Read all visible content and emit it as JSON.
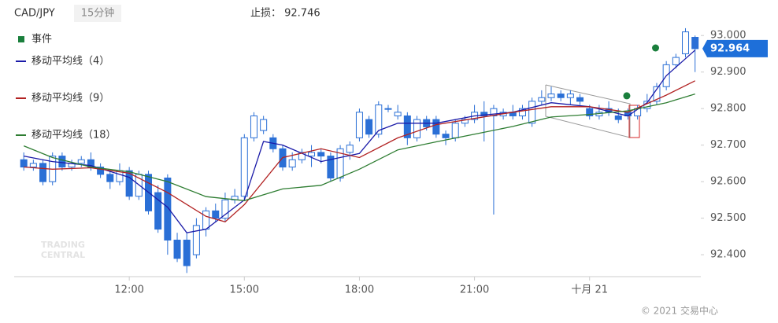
{
  "chart_data": {
    "type": "candlestick",
    "symbol": "CAD/JPY",
    "interval": "15分钟",
    "stop_loss": "止损：  92.746",
    "watermark": [
      "TRADING",
      "CENTRAL"
    ],
    "copyright": "© 2021 交易中心",
    "up_color": "#ffffff",
    "down_color": "#2a6fd6",
    "candle_edge": "#2a6fd6",
    "x": [
      9.25,
      9.5,
      9.75,
      10,
      10.25,
      10.5,
      10.75,
      11,
      11.25,
      11.5,
      11.75,
      12,
      12.25,
      12.5,
      12.75,
      13,
      13.25,
      13.5,
      13.75,
      14,
      14.25,
      14.5,
      14.75,
      15,
      15.25,
      15.5,
      15.75,
      16,
      16.25,
      16.5,
      16.75,
      17,
      17.25,
      17.5,
      17.75,
      18,
      18.25,
      18.5,
      18.75,
      19,
      19.25,
      19.5,
      19.75,
      20,
      20.25,
      20.5,
      20.75,
      21,
      21.25,
      21.5,
      21.75,
      22,
      22.25,
      22.5,
      22.75,
      23,
      23.25,
      23.5,
      23.75,
      24,
      24.25,
      24.5,
      24.75,
      25,
      25.25,
      25.5,
      25.75,
      26,
      26.25,
      26.5,
      26.75
    ],
    "open": [
      92.66,
      92.64,
      92.65,
      92.6,
      92.67,
      92.64,
      92.65,
      92.66,
      92.64,
      92.62,
      92.6,
      92.63,
      92.56,
      92.62,
      92.57,
      92.61,
      92.44,
      92.44,
      92.4,
      92.47,
      92.52,
      92.5,
      92.55,
      92.56,
      92.72,
      92.74,
      92.72,
      92.69,
      92.64,
      92.66,
      92.67,
      92.68,
      92.67,
      92.61,
      92.68,
      92.72,
      92.77,
      92.73,
      92.8,
      92.78,
      92.78,
      92.72,
      92.77,
      92.77,
      92.73,
      92.72,
      92.76,
      92.77,
      92.79,
      92.78,
      92.78,
      92.79,
      92.78,
      92.76,
      92.82,
      92.83,
      92.84,
      92.83,
      92.83,
      92.8,
      92.78,
      92.8,
      92.78,
      92.79,
      92.78,
      92.8,
      92.82,
      92.86,
      92.92,
      92.95,
      92.995
    ],
    "high": [
      92.68,
      92.66,
      92.66,
      92.68,
      92.68,
      92.66,
      92.67,
      92.68,
      92.65,
      92.63,
      92.65,
      92.64,
      92.63,
      92.63,
      92.59,
      92.62,
      92.46,
      92.46,
      92.5,
      92.53,
      92.54,
      92.57,
      92.58,
      92.73,
      92.79,
      92.78,
      92.73,
      92.7,
      92.68,
      92.69,
      92.7,
      92.69,
      92.68,
      92.7,
      92.71,
      92.8,
      92.78,
      92.82,
      92.81,
      92.81,
      92.79,
      92.78,
      92.78,
      92.78,
      92.74,
      92.77,
      92.78,
      92.81,
      92.82,
      92.81,
      92.8,
      92.81,
      92.81,
      92.83,
      92.85,
      92.86,
      92.85,
      92.85,
      92.84,
      92.81,
      92.81,
      92.82,
      92.8,
      92.8,
      92.81,
      92.84,
      92.87,
      92.93,
      92.95,
      93.02,
      93.0
    ],
    "low": [
      92.63,
      92.63,
      92.59,
      92.59,
      92.63,
      92.63,
      92.64,
      92.63,
      92.61,
      92.58,
      92.59,
      92.55,
      92.55,
      92.51,
      92.46,
      92.4,
      92.38,
      92.35,
      92.39,
      92.45,
      92.49,
      92.49,
      92.54,
      92.55,
      92.71,
      92.73,
      92.68,
      92.63,
      92.63,
      92.65,
      92.64,
      92.65,
      92.6,
      92.6,
      92.66,
      92.71,
      92.72,
      92.72,
      92.79,
      92.77,
      92.7,
      92.71,
      92.74,
      92.72,
      92.7,
      92.71,
      92.75,
      92.76,
      92.71,
      92.51,
      92.77,
      92.77,
      92.77,
      92.75,
      92.81,
      92.82,
      92.82,
      92.81,
      92.81,
      92.77,
      92.77,
      92.78,
      92.76,
      92.77,
      92.77,
      92.79,
      92.81,
      92.85,
      92.91,
      92.94,
      92.9
    ],
    "close": [
      92.64,
      92.65,
      92.6,
      92.67,
      92.64,
      92.65,
      92.66,
      92.64,
      92.62,
      92.6,
      92.63,
      92.56,
      92.62,
      92.52,
      92.47,
      92.44,
      92.39,
      92.37,
      92.48,
      92.52,
      92.5,
      92.55,
      92.56,
      92.72,
      92.78,
      92.77,
      92.69,
      92.64,
      92.66,
      92.68,
      92.68,
      92.67,
      92.61,
      92.69,
      92.7,
      92.79,
      92.73,
      92.81,
      92.8,
      92.79,
      92.72,
      92.77,
      92.75,
      92.73,
      92.72,
      92.76,
      92.77,
      92.79,
      92.78,
      92.8,
      92.79,
      92.78,
      92.8,
      92.82,
      92.83,
      92.84,
      92.83,
      92.84,
      92.82,
      92.78,
      92.79,
      92.79,
      92.77,
      92.78,
      92.8,
      92.82,
      92.86,
      92.92,
      92.94,
      93.01,
      92.964
    ],
    "series": [
      {
        "name": "移动平均线（4）",
        "color": "#1a1aa8",
        "x": [
          9.25,
          10,
          11,
          12,
          13,
          13.5,
          14,
          15,
          15.5,
          16,
          17,
          18,
          18.5,
          19,
          20,
          21,
          22,
          23,
          24,
          25,
          25.5,
          26,
          26.75
        ],
        "values": [
          92.67,
          92.655,
          92.644,
          92.612,
          92.53,
          92.46,
          92.47,
          92.55,
          92.71,
          92.7,
          92.655,
          92.677,
          92.74,
          92.76,
          92.76,
          92.78,
          92.79,
          92.816,
          92.805,
          92.78,
          92.816,
          92.89,
          92.96
        ]
      },
      {
        "name": "移动平均线（9）",
        "color": "#b22222",
        "x": [
          9.25,
          10,
          11,
          12,
          13,
          14,
          14.5,
          15,
          16,
          17,
          18,
          19,
          20,
          21,
          22,
          23,
          24,
          25,
          26,
          26.75
        ],
        "values": [
          92.64,
          92.634,
          92.638,
          92.623,
          92.57,
          92.505,
          92.49,
          92.537,
          92.666,
          92.69,
          92.666,
          92.72,
          92.756,
          92.773,
          92.79,
          92.805,
          92.805,
          92.79,
          92.837,
          92.876
        ]
      },
      {
        "name": "移动平均线（18）",
        "color": "#2e7d32",
        "x": [
          9.25,
          10,
          11,
          12,
          13,
          14,
          15,
          16,
          17,
          18,
          19,
          20,
          21,
          22,
          23,
          24,
          25,
          26,
          26.75
        ],
        "values": [
          92.698,
          92.666,
          92.64,
          92.627,
          92.6,
          92.559,
          92.548,
          92.58,
          92.59,
          92.634,
          92.687,
          92.709,
          92.73,
          92.751,
          92.777,
          92.784,
          92.794,
          92.816,
          92.84
        ]
      }
    ],
    "events": {
      "name": "事件",
      "color": "#1a7f3c",
      "x": [
        24.97,
        25.72
      ],
      "values": [
        92.835,
        92.966
      ]
    },
    "last_price": 92.964,
    "last_price_color": "#1e6fd9",
    "xlim": [
      9.0,
      26.9
    ],
    "xticks": [
      {
        "value": 12,
        "label": "12:00"
      },
      {
        "value": 15,
        "label": "15:00"
      },
      {
        "value": 18,
        "label": "18:00"
      },
      {
        "value": 21,
        "label": "21:00"
      },
      {
        "value": 24,
        "label": "十月 21"
      }
    ],
    "ylim": [
      92.34,
      93.08
    ],
    "yticks": [
      {
        "value": 92.4,
        "label": "92.400"
      },
      {
        "value": 92.5,
        "label": "92.500"
      },
      {
        "value": 92.6,
        "label": "92.600"
      },
      {
        "value": 92.7,
        "label": "92.700"
      },
      {
        "value": 92.8,
        "label": "92.800"
      },
      {
        "value": 92.9,
        "label": "92.900"
      },
      {
        "value": 93.0,
        "label": "93.000"
      }
    ]
  }
}
